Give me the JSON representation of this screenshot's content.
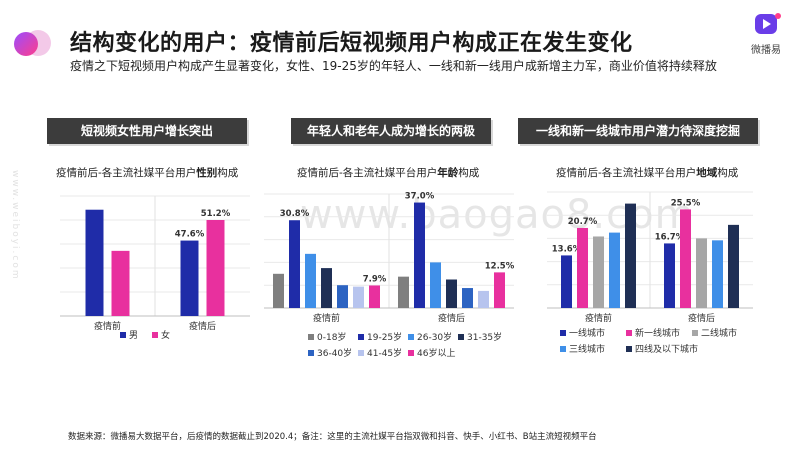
{
  "header": {
    "title": "结构变化的用户：疫情前后短视频用户构成正在发生变化",
    "subtitle": "疫情之下短视频用户构成产生显著变化，女性、19-25岁的年轻人、一线和新一线用户成新增主力军，商业价值将持续释放"
  },
  "brand": {
    "name": "微播易",
    "accent": "#6a3de8"
  },
  "watermark": {
    "center": "www.baogao8.com",
    "side": "www.weiboyi.com"
  },
  "panels": [
    {
      "header": "短视频女性用户增长突出",
      "chart_title_pre": "疫情前后-各主流社媒平台用户",
      "chart_title_bold": "性别",
      "chart_title_post": "构成"
    },
    {
      "header": "年轻人和老年人成为增长的两极",
      "chart_title_pre": "疫情前后-各主流社媒平台用户",
      "chart_title_bold": "年龄",
      "chart_title_post": "构成"
    },
    {
      "header": "一线和新一线城市用户潜力待深度挖掘",
      "chart_title_pre": "疫情前后-各主流社媒平台用户",
      "chart_title_bold": "地域",
      "chart_title_post": "构成"
    }
  ],
  "chart_data": [
    {
      "type": "bar",
      "categories": [
        "疫情前",
        "疫情后"
      ],
      "series": [
        {
          "name": "男",
          "color": "#1f2ca8",
          "values": [
            52.4,
            48.8
          ]
        },
        {
          "name": "女",
          "color": "#e8309e",
          "values": [
            47.6,
            51.2
          ]
        }
      ],
      "data_labels": [
        "",
        "47.6%",
        "",
        "51.2%"
      ],
      "ylim": [
        40,
        54
      ]
    },
    {
      "type": "bar",
      "categories": [
        "疫情前",
        "疫情后"
      ],
      "series": [
        {
          "name": "0-18岁",
          "color": "#7f7f7f",
          "values": [
            12.0,
            11.0
          ]
        },
        {
          "name": "19-25岁",
          "color": "#1f2ca8",
          "values": [
            30.8,
            37.0
          ]
        },
        {
          "name": "26-30岁",
          "color": "#3f8fe8",
          "values": [
            19.0,
            16.0
          ]
        },
        {
          "name": "31-35岁",
          "color": "#1f2f55",
          "values": [
            14.0,
            10.0
          ]
        },
        {
          "name": "36-40岁",
          "color": "#2c63c2",
          "values": [
            8.0,
            7.0
          ]
        },
        {
          "name": "41-45岁",
          "color": "#b7c4ee",
          "values": [
            7.5,
            6.0
          ]
        },
        {
          "name": "46岁以上",
          "color": "#e8309e",
          "values": [
            7.9,
            12.5
          ]
        }
      ],
      "data_labels": [
        [
          "",
          "30.8%",
          "",
          "",
          "",
          "",
          "7.9%"
        ],
        [
          "",
          "37.0%",
          "",
          "",
          "",
          "",
          "12.5%"
        ]
      ],
      "ylim": [
        0,
        40
      ]
    },
    {
      "type": "bar",
      "categories": [
        "疫情前",
        "疫情后"
      ],
      "series": [
        {
          "name": "一线城市",
          "color": "#1f2ca8",
          "values": [
            13.6,
            16.7
          ]
        },
        {
          "name": "新一线城市",
          "color": "#e8309e",
          "values": [
            20.7,
            25.5
          ]
        },
        {
          "name": "二线城市",
          "color": "#a6a6a6",
          "values": [
            18.5,
            18.0
          ]
        },
        {
          "name": "三线城市",
          "color": "#3f8fe8",
          "values": [
            19.5,
            17.5
          ]
        },
        {
          "name": "四线及以下城市",
          "color": "#1f2f55",
          "values": [
            27.0,
            21.5
          ]
        }
      ],
      "data_labels": [
        [
          "13.6%",
          "20.7%",
          "",
          "",
          ""
        ],
        [
          "16.7%",
          "25.5%",
          "",
          "",
          ""
        ]
      ],
      "ylim": [
        0,
        30
      ]
    }
  ],
  "footnote": "数据来源：微播易大数据平台，后疫情的数据截止到2020.4；备注：这里的主流社媒平台指双微和抖音、快手、小红书、B站主流短视频平台"
}
